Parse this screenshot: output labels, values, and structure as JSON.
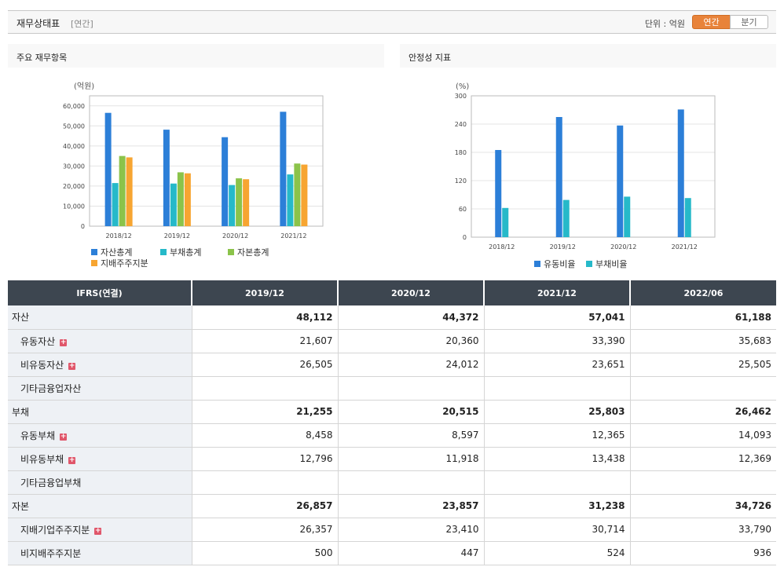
{
  "header": {
    "title": "재무상태표",
    "subtitle": "[연간]",
    "unit_label": "단위 : 억원",
    "toggle_annual": "연간",
    "toggle_quarter": "분기"
  },
  "left_panel": {
    "title": "주요 재무항목"
  },
  "right_panel": {
    "title": "안정성 지표"
  },
  "chart_data": [
    {
      "type": "bar",
      "title": "주요 재무항목",
      "ylabel": "(억원)",
      "categories": [
        "2018/12",
        "2019/12",
        "2020/12",
        "2021/12"
      ],
      "ylim": [
        0,
        65000
      ],
      "yticks": [
        0,
        10000,
        20000,
        30000,
        40000,
        50000,
        60000
      ],
      "ytick_labels": [
        "0",
        "10,000",
        "20,000",
        "30,000",
        "40,000",
        "50,000",
        "60,000"
      ],
      "series": [
        {
          "name": "자산총계",
          "color": "#2c7fd8",
          "values": [
            56500,
            48112,
            44372,
            57041
          ]
        },
        {
          "name": "부채총계",
          "color": "#26b9c9",
          "values": [
            21500,
            21255,
            20515,
            25803
          ]
        },
        {
          "name": "자본총계",
          "color": "#8bc34a",
          "values": [
            35000,
            26857,
            23857,
            31238
          ]
        },
        {
          "name": "지배주주지분",
          "color": "#f7a531",
          "values": [
            34300,
            26357,
            23410,
            30714
          ]
        }
      ],
      "legend": "bottom"
    },
    {
      "type": "bar",
      "title": "안정성 지표",
      "ylabel": "(%)",
      "categories": [
        "2018/12",
        "2019/12",
        "2020/12",
        "2021/12"
      ],
      "ylim": [
        0,
        300
      ],
      "yticks": [
        0,
        60,
        120,
        180,
        240,
        300
      ],
      "ytick_labels": [
        "0",
        "60",
        "120",
        "180",
        "240",
        "300"
      ],
      "series": [
        {
          "name": "유동비율",
          "color": "#2c7fd8",
          "values": [
            185,
            255,
            237,
            271
          ]
        },
        {
          "name": "부채비율",
          "color": "#26b9c9",
          "values": [
            62,
            79,
            86,
            83
          ]
        }
      ],
      "legend": "bottom"
    }
  ],
  "table": {
    "headers": [
      "IFRS(연결)",
      "2019/12",
      "2020/12",
      "2021/12",
      "2022/06"
    ],
    "rows": [
      {
        "label": "자산",
        "level": "major",
        "expand": false,
        "values": [
          "48,112",
          "44,372",
          "57,041",
          "61,188"
        ]
      },
      {
        "label": "유동자산",
        "level": "sub",
        "expand": true,
        "values": [
          "21,607",
          "20,360",
          "33,390",
          "35,683"
        ]
      },
      {
        "label": "비유동자산",
        "level": "sub",
        "expand": true,
        "values": [
          "26,505",
          "24,012",
          "23,651",
          "25,505"
        ]
      },
      {
        "label": "기타금융업자산",
        "level": "sub",
        "expand": false,
        "values": [
          "",
          "",
          "",
          ""
        ]
      },
      {
        "label": "부채",
        "level": "major",
        "expand": false,
        "values": [
          "21,255",
          "20,515",
          "25,803",
          "26,462"
        ]
      },
      {
        "label": "유동부채",
        "level": "sub",
        "expand": true,
        "values": [
          "8,458",
          "8,597",
          "12,365",
          "14,093"
        ]
      },
      {
        "label": "비유동부채",
        "level": "sub",
        "expand": true,
        "values": [
          "12,796",
          "11,918",
          "13,438",
          "12,369"
        ]
      },
      {
        "label": "기타금융업부채",
        "level": "sub",
        "expand": false,
        "values": [
          "",
          "",
          "",
          ""
        ]
      },
      {
        "label": "자본",
        "level": "major",
        "expand": false,
        "values": [
          "26,857",
          "23,857",
          "31,238",
          "34,726"
        ]
      },
      {
        "label": "지배기업주주지분",
        "level": "sub",
        "expand": true,
        "values": [
          "26,357",
          "23,410",
          "30,714",
          "33,790"
        ]
      },
      {
        "label": "비지배주주지분",
        "level": "sub",
        "expand": false,
        "values": [
          "500",
          "447",
          "524",
          "936"
        ]
      }
    ]
  }
}
